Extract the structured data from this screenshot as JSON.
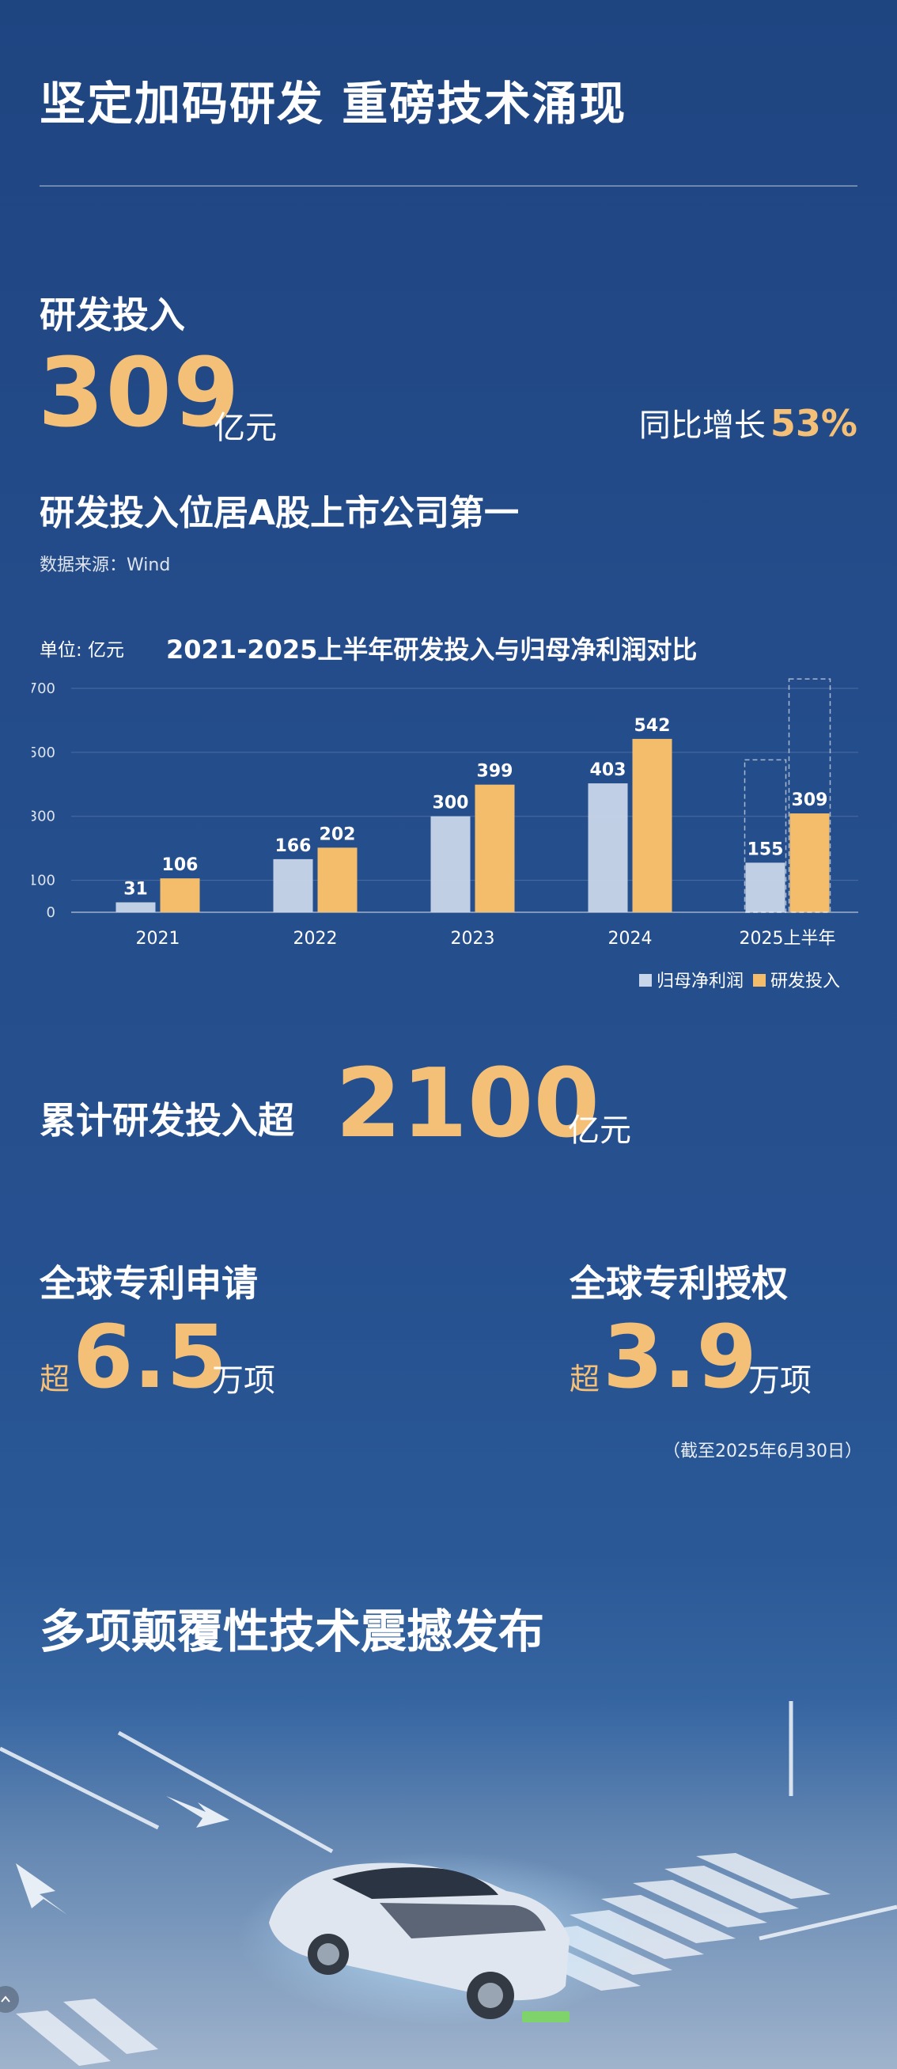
{
  "header": {
    "title": "坚定加码研发 重磅技术涌现"
  },
  "rd": {
    "heading": "研发投入",
    "value": "309",
    "unit": "亿元",
    "yoy_label": "同比增长",
    "yoy_value": "53%",
    "rank": "研发投入位居A股上市公司第一",
    "source": "数据来源：Wind"
  },
  "chart_data": {
    "type": "bar",
    "title": "2021-2025上半年研发投入与归母净利润对比",
    "unit_label": "单位: 亿元",
    "categories": [
      "2021",
      "2022",
      "2023",
      "2024",
      "2025上半年"
    ],
    "yticks": [
      0,
      100,
      300,
      500,
      700
    ],
    "ylim": [
      0,
      700
    ],
    "series": [
      {
        "name": "归母净利润",
        "values": [
          31,
          166,
          300,
          403,
          155
        ],
        "color": "#c9d6ea"
      },
      {
        "name": "研发投入",
        "values": [
          106,
          202,
          399,
          542,
          309
        ],
        "color": "#f3bd6c"
      }
    ],
    "dashed_box_category": "2025上半年",
    "legend_position": "bottom-right"
  },
  "cumulative": {
    "label": "累计研发投入超",
    "value": "2100",
    "unit": "亿元"
  },
  "patents": {
    "apply": {
      "heading": "全球专利申请",
      "prefix": "超",
      "value": "6.5",
      "unit": "万项"
    },
    "grant": {
      "heading": "全球专利授权",
      "prefix": "超",
      "value": "3.9",
      "unit": "万项"
    },
    "as_of": "（截至2025年6月30日）"
  },
  "tech": {
    "heading": "多项颠覆性技术震撼发布"
  },
  "icons": {
    "nav": "chevron-up-icon"
  }
}
